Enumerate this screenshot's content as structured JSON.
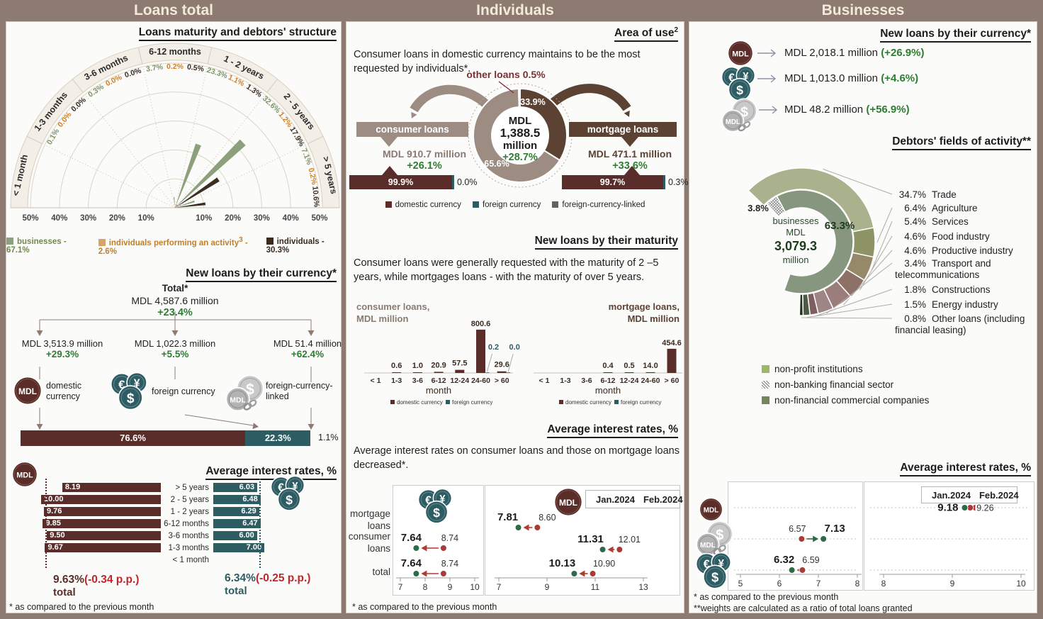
{
  "colors": {
    "maroon": "#5a2d2a",
    "teal": "#2d5c63",
    "green": "#2e7d32",
    "red": "#c2262b",
    "taupe": "#9c8c82",
    "dark_brown": "#5b4233",
    "sage": "#8ba07b",
    "orange": "#d78e2e",
    "dark": "#3a2d22",
    "jan": "#a93a35",
    "feb": "#2c6b49",
    "header_bg": "#8d7b72",
    "panel_bg": "#fbfbfa"
  },
  "header": {
    "col1": "Loans total",
    "col2": "Individuals",
    "col3": "Businesses"
  },
  "chart_data": [
    {
      "id": "maturity_polar",
      "type": "polar-bar",
      "rmax": 50,
      "categories": [
        "< 1 month",
        "1-3 months",
        "3-6 months",
        "6-12 months",
        "1 - 2 years",
        "2 - 5 years",
        "> 5 years"
      ],
      "axis_ticks_left": [
        "50%",
        "40%",
        "30%",
        "20%",
        "10%"
      ],
      "axis_ticks_right": [
        "10%",
        "20%",
        "30%",
        "40%",
        "50%"
      ],
      "series": [
        {
          "name": "businesses",
          "color": "#8ba07b",
          "label_color": "#7d9565",
          "values": [
            0,
            0.1,
            0.3,
            3.7,
            23.3,
            32.6,
            7.1
          ],
          "labels": [
            "",
            "0.1%",
            "0.3%",
            "3.7%",
            "23.3%",
            "32.6%",
            "7.1%"
          ]
        },
        {
          "name": "individuals performing an activity",
          "color": "#d78e2e",
          "label_color": "#cf7f28",
          "values": [
            0,
            0,
            0,
            0.2,
            1.1,
            1.2,
            0.2
          ],
          "labels": [
            "",
            "0.0%",
            "0.0%",
            "0.2%",
            "1.1%",
            "1.2%",
            "0.2%"
          ]
        },
        {
          "name": "individuals",
          "color": "#3a2d22",
          "label_color": "#3a2d22",
          "values": [
            0,
            0,
            0,
            0.5,
            1.3,
            17.9,
            10.6
          ],
          "labels": [
            "",
            "0.0%",
            "0.0%",
            "0.5%",
            "1.3%",
            "17.9%",
            "10.6%"
          ]
        }
      ]
    },
    {
      "id": "currency_split_bar",
      "type": "bar",
      "segments": [
        {
          "label": "76.6%",
          "value": 76.6,
          "color": "#5a2d2a"
        },
        {
          "label": "22.3%",
          "value": 22.3,
          "color": "#2d5c63"
        }
      ],
      "outside": {
        "label": "1.1%",
        "value": 1.1
      }
    },
    {
      "id": "avg_rates_tornado",
      "type": "tornado-bar",
      "categories": [
        "> 5 years",
        "2 - 5 years",
        "1 - 2 years",
        "6-12 months",
        "3-6 months",
        "1-3 months",
        "< 1 month"
      ],
      "mdl": {
        "values": [
          8.19,
          10.0,
          9.76,
          9.85,
          9.5,
          9.67,
          null
        ],
        "labels": [
          "8.19",
          "10.00",
          "9.76",
          "9.85",
          "9.50",
          "9.67",
          ""
        ],
        "total": 9.63
      },
      "fx": {
        "values": [
          6.03,
          6.48,
          6.29,
          6.47,
          6.0,
          7.0,
          null
        ],
        "labels": [
          "6.03",
          "6.48",
          "6.29",
          "6.47",
          "6.00",
          "7.00",
          ""
        ],
        "total": 6.34
      }
    },
    {
      "id": "area_of_use_pie",
      "type": "pie",
      "slices": [
        {
          "name": "mortgage loans",
          "value": 33.9,
          "label": "33.9%",
          "color": "#5b4233"
        },
        {
          "name": "consumer loans",
          "value": 65.6,
          "label": "65.6%",
          "color": "#9c8c82"
        },
        {
          "name": "other loans",
          "value": 0.5,
          "label": "other loans 0.5%",
          "color": "hatch"
        }
      ],
      "center": [
        "MDL",
        "1,388.5",
        "million"
      ],
      "center_change": "+28.7%"
    },
    {
      "id": "consumer_currency_bar",
      "type": "bar",
      "segments": [
        {
          "label": "99.9%",
          "value": 99.9
        },
        {
          "label": "0.0%",
          "value": 0.0
        }
      ]
    },
    {
      "id": "mortgage_currency_bar",
      "type": "bar",
      "segments": [
        {
          "label": "99.7%",
          "value": 99.7
        },
        {
          "label": "0.3%",
          "value": 0.3
        }
      ]
    },
    {
      "id": "maturity_consumer_bar",
      "type": "bar",
      "title_lines": [
        "consumer loans,",
        "MDL million"
      ],
      "categories": [
        "< 1",
        "1-3",
        "3-6",
        "6-12",
        "12-24",
        "24-60",
        "> 60"
      ],
      "xlabel": "month",
      "series": [
        {
          "name": "domestic currency",
          "color": "#5a2d2a",
          "values": [
            null,
            0.6,
            1.0,
            20.9,
            57.5,
            800.6,
            29.6
          ],
          "labels": [
            "",
            "0.6",
            "1.0",
            "20.9",
            "57.5",
            "800.6",
            "29.6"
          ]
        },
        {
          "name": "foreign currency",
          "color": "#2d5c63",
          "values": [
            null,
            null,
            null,
            null,
            null,
            0.2,
            0.0
          ],
          "labels": [
            "",
            "",
            "",
            "",
            "",
            "0.2",
            "0.0"
          ]
        }
      ]
    },
    {
      "id": "maturity_mortgage_bar",
      "type": "bar",
      "title_lines": [
        "mortgage loans,",
        "MDL million"
      ],
      "categories": [
        "< 1",
        "1-3",
        "3-6",
        "6-12",
        "12-24",
        "24-60",
        "> 60"
      ],
      "xlabel": "month",
      "series": [
        {
          "name": "domestic currency",
          "color": "#5a2d2a",
          "values": [
            null,
            null,
            null,
            0.4,
            0.5,
            14.0,
            454.6
          ],
          "labels": [
            "",
            "",
            "",
            "0.4",
            "0.5",
            "14.0",
            "454.6"
          ]
        },
        {
          "name": "foreign currency",
          "color": "#2d5c63",
          "values": [],
          "labels": []
        }
      ]
    },
    {
      "id": "ind_rates_fx",
      "type": "dot-range",
      "xmin": 7,
      "xmax": 10,
      "ticks": [
        "7",
        "8",
        "9",
        "10"
      ],
      "rows": [
        {
          "row": "consumer loans",
          "jan": 8.74,
          "feb": 7.64,
          "jan_label": "8.74",
          "feb_label": "7.64"
        },
        {
          "row": "total",
          "jan": 8.74,
          "feb": 7.64,
          "jan_label": "8.74",
          "feb_label": "7.64"
        }
      ]
    },
    {
      "id": "ind_rates_mdl",
      "type": "dot-range",
      "xmin": 7,
      "xmax": 13,
      "ticks": [
        "7",
        "9",
        "11",
        "13"
      ],
      "rows": [
        {
          "row": "mortgage loans",
          "jan": 8.6,
          "feb": 7.81,
          "jan_label": "8.60",
          "feb_label": "7.81"
        },
        {
          "row": "consumer loans",
          "jan": 12.01,
          "feb": 11.31,
          "jan_label": "12.01",
          "feb_label": "11.31"
        },
        {
          "row": "total",
          "jan": 10.9,
          "feb": 10.13,
          "jan_label": "10.90",
          "feb_label": "10.13"
        }
      ]
    },
    {
      "id": "biz_fields_donut",
      "type": "donut",
      "center": [
        "businesses",
        "MDL",
        "3,079.3",
        "million"
      ],
      "inner": [
        {
          "name": "non-banking financial sector",
          "value": 3.8,
          "label": "3.8%",
          "fill": "hatch"
        },
        {
          "name": "non-financial commercial companies",
          "value": 63.3,
          "label": "63.3%",
          "fill": "#87977f"
        },
        {
          "name": "non-profit institutions",
          "value": 0.2,
          "label": "",
          "fill": "#1f3a25"
        }
      ],
      "outer": [
        {
          "pct": "34.7%",
          "label_lines": [
            "Trade"
          ],
          "value": 34.7,
          "fill": "#a9b28c"
        },
        {
          "pct": "6.4%",
          "label_lines": [
            "Agriculture"
          ],
          "value": 6.4,
          "fill": "#8f9466"
        },
        {
          "pct": "5.4%",
          "label_lines": [
            "Services"
          ],
          "value": 5.4,
          "fill": "#95896a"
        },
        {
          "pct": "4.6%",
          "label_lines": [
            "Food industry"
          ],
          "value": 4.6,
          "fill": "#8d7066"
        },
        {
          "pct": "4.6%",
          "label_lines": [
            "Productive industry"
          ],
          "value": 4.6,
          "fill": "#9b7d7b"
        },
        {
          "pct": "3.4%",
          "label_lines": [
            "Transport and",
            "telecommunications"
          ],
          "value": 3.4,
          "fill": "#a08586"
        },
        {
          "pct": "1.8%",
          "label_lines": [
            "Constructions"
          ],
          "value": 1.8,
          "fill": "#7d5f5f"
        },
        {
          "pct": "1.5%",
          "label_lines": [
            "Energy industry"
          ],
          "value": 1.5,
          "fill": "#4e5a43"
        },
        {
          "pct": "0.8%",
          "label_lines": [
            "Other loans (including",
            "financial leasing)"
          ],
          "value": 0.8,
          "fill": "#24351f"
        }
      ]
    },
    {
      "id": "biz_rates_left",
      "type": "dot-range",
      "xmin": 5,
      "xmax": 8,
      "ticks": [
        "5",
        "6",
        "7",
        "8"
      ],
      "rows": [
        {
          "row": "mdl"
        },
        {
          "row": "foreign-currency-linked",
          "jan": 6.57,
          "feb": 7.13,
          "jan_label": "6.57",
          "feb_label": "7.13"
        },
        {
          "row": "foreign currency",
          "jan": 6.59,
          "feb": 6.32,
          "jan_label": "6.59",
          "feb_label": "6.32"
        }
      ]
    },
    {
      "id": "biz_rates_right",
      "type": "dot-range",
      "xmin": 8,
      "xmax": 10,
      "ticks": [
        "8",
        "9",
        "10"
      ],
      "rows": [
        {
          "row": "mdl",
          "jan": 9.26,
          "feb": 9.18,
          "jan_label": "9.26",
          "feb_label": "9.18"
        }
      ]
    }
  ],
  "loans_total": {
    "maturity": {
      "title": "Loans maturity and debtors' structure",
      "legend": [
        {
          "label": "businesses - 67.1%",
          "sup": "",
          "suffix": ""
        },
        {
          "label": "individuals performing an activity",
          "sup": "3",
          "suffix": " - 2.6%"
        },
        {
          "label": "individuals - 30.3%",
          "sup": "",
          "suffix": ""
        }
      ]
    },
    "currency": {
      "title": "New loans by their currency*",
      "total_label": "Total*",
      "total_amount": "MDL 4,587.6 million",
      "total_change": "+23.4%",
      "branches": [
        {
          "amount": "MDL 3,513.9 million",
          "change": "+29.3%",
          "label": "domestic currency"
        },
        {
          "amount": "MDL 1,022.3 million",
          "change": "+5.5%",
          "label": "foreign currency"
        },
        {
          "amount": "MDL 51.4 million",
          "change": "+62.4%",
          "label": "foreign-currency-linked"
        }
      ],
      "outside_label": "1.1%"
    },
    "rates": {
      "title": "Average interest rates, %",
      "mdl_total": "9.63%",
      "mdl_total_change": "(-0.34 p.p.)",
      "mdl_total_word": "total",
      "fx_total": "6.34%",
      "fx_total_change": "(-0.25 p.p.)",
      "fx_total_word": "total",
      "footnote": "* as compared to the previous month"
    }
  },
  "individuals": {
    "area": {
      "title": "Area of use",
      "title_sup": "2",
      "text": "Consumer loans in domestic currency maintains to be the most requested by individuals*.",
      "other_label": "other loans 0.5%",
      "consumer": {
        "banner": "consumer loans",
        "amount": "MDL 910.7 million",
        "change": "+26.1%",
        "outside_label": "0.0%"
      },
      "mortgage": {
        "banner": "mortgage loans",
        "amount": "MDL 471.1 million",
        "change": "+33.6%",
        "outside_label": "0.3%"
      },
      "legend": [
        "domestic currency",
        "foreign currency",
        "foreign-currency-linked"
      ]
    },
    "maturity": {
      "title": "New loans by their maturity",
      "text": "Consumer loans were generally requested with the maturity of 2 –5 years, while mortgages loans - with the maturity of over 5 years."
    },
    "rates": {
      "title": "Average interest rates, %",
      "text": "Average interest rates on consumer loans and those on mortgage loans decreased*.",
      "row_labels": [
        "mortgage loans",
        "consumer loans",
        "total"
      ],
      "legend": {
        "jan": "Jan.2024",
        "feb": "Feb.2024"
      },
      "footnote": "* as compared to the previous month"
    }
  },
  "businesses": {
    "currency": {
      "title": "New loans by their currency*",
      "rows": [
        {
          "amount": "MDL 2,018.1 million",
          "change": "(+26.9%)"
        },
        {
          "amount": "MDL 1,013.0 million",
          "change": "(+4.6%)"
        },
        {
          "amount": "MDL 48.2 million",
          "change": "(+56.9%)"
        }
      ]
    },
    "fields": {
      "title": "Debtors' fields of activity**",
      "legend": [
        {
          "label": "non-profit institutions",
          "fill": "#9cb866"
        },
        {
          "label": "non-banking financial sector",
          "fill": "hatch"
        },
        {
          "label": "non-financial commercial companies",
          "fill": "#75855c"
        }
      ]
    },
    "rates": {
      "title": "Average interest rates, %",
      "legend": {
        "jan": "Jan.2024",
        "feb": "Feb.2024"
      },
      "footnote1": "* as compared to the previous month",
      "footnote2": "**weights are calculated as a ratio of total loans granted"
    }
  }
}
